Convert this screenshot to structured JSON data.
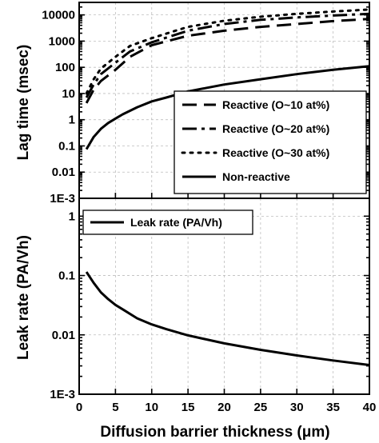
{
  "chart_data": [
    {
      "type": "line",
      "panel": "top",
      "ylabel": "Lag time (msec)",
      "yscale": "log",
      "xlim": [
        0,
        40
      ],
      "ylim": [
        0.001,
        30000
      ],
      "yticks": [
        0.001,
        0.01,
        0.1,
        1,
        10,
        100,
        1000,
        10000
      ],
      "ytick_labels": [
        "1E-3",
        "0.01",
        "0.1",
        "1",
        "10",
        "100",
        "1000",
        "10000"
      ],
      "grid": true,
      "legend_position": "center-right",
      "series": [
        {
          "name": "Reactive (O~10 at%)",
          "dash": "dash",
          "x": [
            1,
            2,
            3,
            5,
            7,
            10,
            15,
            20,
            25,
            30,
            35,
            40
          ],
          "y": [
            4.3,
            14,
            30,
            80,
            250,
            700,
            1600,
            2500,
            3500,
            4500,
            5800,
            7000
          ]
        },
        {
          "name": "Reactive (O~20 at%)",
          "dash": "dashdot",
          "x": [
            1,
            2,
            3,
            5,
            7,
            10,
            15,
            20,
            25,
            30,
            35,
            40
          ],
          "y": [
            7,
            22,
            55,
            150,
            400,
            900,
            2500,
            4500,
            6500,
            8000,
            9500,
            11000
          ]
        },
        {
          "name": "Reactive (O~30 at%)",
          "dash": "dot",
          "x": [
            1,
            2,
            3,
            5,
            7,
            10,
            15,
            20,
            25,
            30,
            35,
            40
          ],
          "y": [
            10,
            35,
            90,
            250,
            650,
            1300,
            3500,
            6000,
            8500,
            11000,
            13500,
            16000
          ]
        },
        {
          "name": "Non-reactive",
          "dash": "solid",
          "x": [
            1,
            2,
            3,
            4,
            5,
            6,
            8,
            10,
            12,
            15,
            20,
            25,
            30,
            35,
            40
          ],
          "y": [
            0.075,
            0.22,
            0.45,
            0.75,
            1.1,
            1.6,
            3,
            5,
            7,
            12,
            22,
            35,
            55,
            80,
            110
          ]
        }
      ]
    },
    {
      "type": "line",
      "panel": "bottom",
      "ylabel": "Leak rate (PA/Vh)",
      "xlabel": "Diffusion barrier thickness (μm)",
      "yscale": "log",
      "xlim": [
        0,
        40
      ],
      "ylim": [
        0.001,
        2
      ],
      "yticks": [
        0.001,
        0.01,
        0.1,
        1
      ],
      "ytick_labels": [
        "1E-3",
        "0.01",
        "0.1",
        "1"
      ],
      "xticks": [
        0,
        5,
        10,
        15,
        20,
        25,
        30,
        35,
        40
      ],
      "xtick_labels": [
        "0",
        "5",
        "10",
        "15",
        "20",
        "25",
        "30",
        "35",
        "40"
      ],
      "grid": true,
      "legend_position": "top-left",
      "series": [
        {
          "name": "Leak rate (PA/Vh)",
          "dash": "solid",
          "x": [
            1,
            2,
            3,
            4,
            5,
            6,
            8,
            10,
            12,
            15,
            20,
            25,
            30,
            35,
            40
          ],
          "y": [
            0.115,
            0.075,
            0.052,
            0.04,
            0.032,
            0.027,
            0.019,
            0.015,
            0.0125,
            0.0098,
            0.0072,
            0.0056,
            0.0045,
            0.0037,
            0.0031
          ]
        }
      ]
    }
  ]
}
